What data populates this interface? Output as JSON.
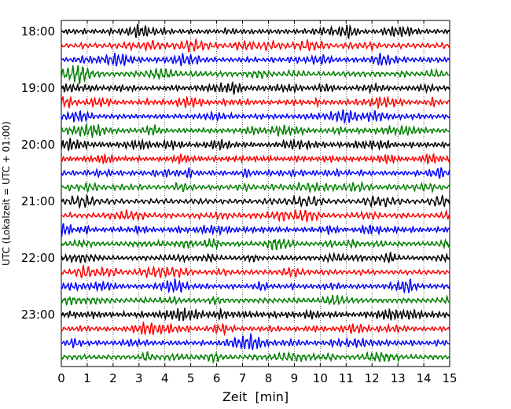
{
  "chart_data": {
    "type": "line",
    "title": "",
    "xlabel": "Zeit  [min]",
    "ylabel": "UTC (Lokalzeit = UTC + 01:00)",
    "xlim": [
      0,
      15
    ],
    "x_ticks": [
      0,
      1,
      2,
      3,
      4,
      5,
      6,
      7,
      8,
      9,
      10,
      11,
      12,
      13,
      14,
      15
    ],
    "x_tick_labels": [
      "0",
      "1",
      "2",
      "3",
      "4",
      "5",
      "6",
      "7",
      "8",
      "9",
      "10",
      "11",
      "12",
      "13",
      "14",
      "15"
    ],
    "y_tick_labels": [
      "18:00",
      "19:00",
      "20:00",
      "21:00",
      "22:00",
      "23:00"
    ],
    "grid": true,
    "trace_minutes": 15,
    "trace_count": 24,
    "first_trace": "18:00",
    "colors_cycle": [
      "#000000",
      "#ff0000",
      "#0000ff",
      "#008000"
    ]
  }
}
